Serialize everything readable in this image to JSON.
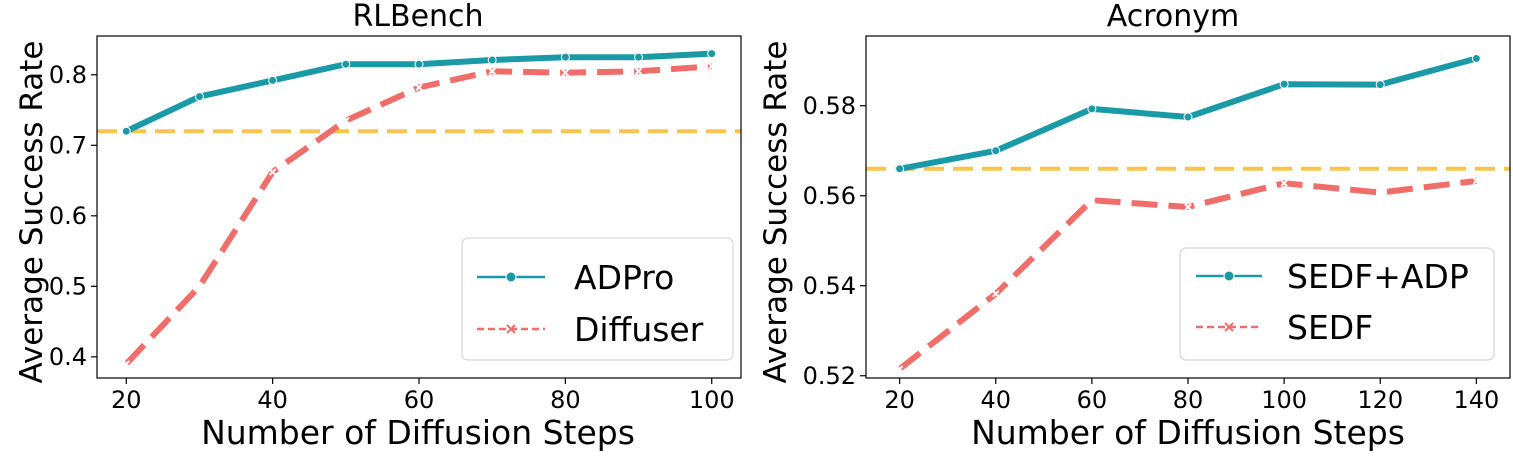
{
  "colors": {
    "teal": "#1a9aa6",
    "salmon": "#f06e6a",
    "baseline": "#f9c44a",
    "axis": "#000000"
  },
  "chart_data": [
    {
      "type": "line",
      "title": "RLBench",
      "xlabel": "Number of Diffusion Steps",
      "ylabel": "Average Success Rate",
      "xlim": [
        16,
        104
      ],
      "ylim": [
        0.37,
        0.855
      ],
      "xticks": [
        20,
        40,
        60,
        80,
        100
      ],
      "xtick_labels": [
        "20",
        "40",
        "60",
        "80",
        "100"
      ],
      "yticks": [
        0.4,
        0.5,
        0.6,
        0.7,
        0.8
      ],
      "ytick_labels": [
        "0.4",
        "0.5",
        "0.6",
        "0.7",
        "0.8"
      ],
      "x": [
        20,
        30,
        40,
        50,
        60,
        70,
        80,
        90,
        100
      ],
      "series": [
        {
          "name": "ADPro",
          "style": "solid",
          "marker": "circle",
          "color": "#1a9aa6",
          "values": [
            0.72,
            0.769,
            0.792,
            0.815,
            0.815,
            0.821,
            0.825,
            0.825,
            0.83
          ]
        },
        {
          "name": "Diffuser",
          "style": "dashed",
          "marker": "x",
          "color": "#f06e6a",
          "values": [
            0.39,
            0.5,
            0.662,
            0.735,
            0.782,
            0.805,
            0.803,
            0.805,
            0.812
          ]
        }
      ],
      "baseline": 0.72,
      "legend": {
        "position": "lower-right",
        "entries": [
          "ADPro",
          "Diffuser"
        ]
      }
    },
    {
      "type": "line",
      "title": "Acronym",
      "xlabel": "Number of Diffusion Steps",
      "ylabel": "Average Success Rate",
      "xlim": [
        13,
        147
      ],
      "ylim": [
        0.5195,
        0.5955
      ],
      "xticks": [
        20,
        40,
        60,
        80,
        100,
        120,
        140
      ],
      "xtick_labels": [
        "20",
        "40",
        "60",
        "80",
        "100",
        "120",
        "140"
      ],
      "yticks": [
        0.52,
        0.54,
        0.56,
        0.58
      ],
      "ytick_labels": [
        "0.52",
        "0.54",
        "0.56",
        "0.58"
      ],
      "x": [
        20,
        40,
        60,
        80,
        100,
        120,
        140
      ],
      "series": [
        {
          "name": "SEDF+ADP",
          "style": "solid",
          "marker": "circle",
          "color": "#1a9aa6",
          "values": [
            0.566,
            0.57,
            0.5793,
            0.5775,
            0.5848,
            0.5847,
            0.5905
          ]
        },
        {
          "name": "SEDF",
          "style": "dashed",
          "marker": "x",
          "color": "#f06e6a",
          "values": [
            0.5215,
            0.5382,
            0.559,
            0.5575,
            0.5628,
            0.5607,
            0.5633
          ]
        }
      ],
      "baseline": 0.566,
      "legend": {
        "position": "lower-right",
        "entries": [
          "SEDF+ADP",
          "SEDF"
        ]
      }
    }
  ]
}
